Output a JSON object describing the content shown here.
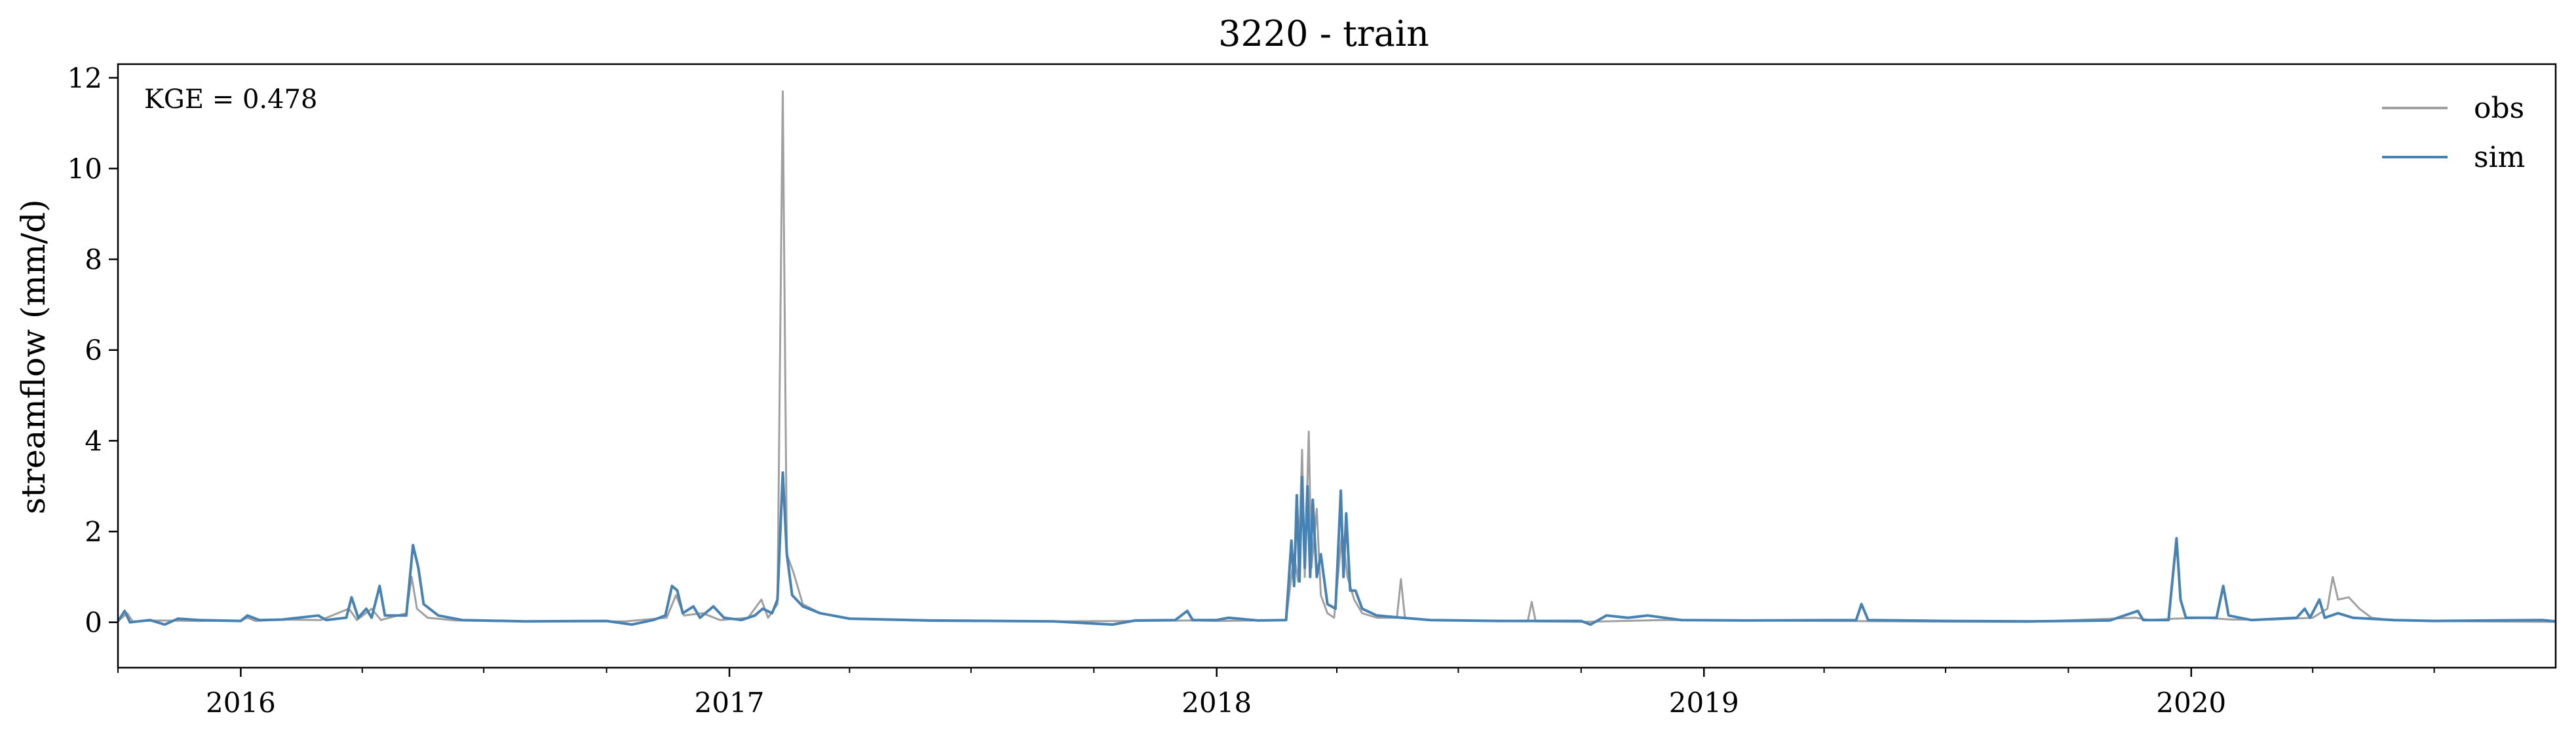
{
  "chart_data": {
    "type": "line",
    "title": "3220 - train",
    "xlabel": "",
    "ylabel": "streamflow (mm/d)",
    "annotation": "KGE = 0.478",
    "xlim": [
      "2015-10-01",
      "2020-09-30"
    ],
    "ylim": [
      -1,
      12.3
    ],
    "yticks": [
      0,
      2,
      4,
      6,
      8,
      10,
      12
    ],
    "xticks": [
      "2016",
      "2017",
      "2018",
      "2019",
      "2020"
    ],
    "grid": false,
    "legend": {
      "placement": "top-right",
      "entries": [
        "obs",
        "sim"
      ]
    },
    "series": [
      {
        "name": "obs",
        "color": "#a0a0a0",
        "points": [
          [
            "2015-10-01",
            0.03
          ],
          [
            "2015-10-08",
            0.2
          ],
          [
            "2015-10-12",
            0.02
          ],
          [
            "2015-11-01",
            0.04
          ],
          [
            "2015-12-01",
            0.03
          ],
          [
            "2016-01-01",
            0.04
          ],
          [
            "2016-01-06",
            0.1
          ],
          [
            "2016-01-12",
            0.03
          ],
          [
            "2016-02-01",
            0.06
          ],
          [
            "2016-03-01",
            0.05
          ],
          [
            "2016-03-22",
            0.3
          ],
          [
            "2016-03-28",
            0.05
          ],
          [
            "2016-04-08",
            0.3
          ],
          [
            "2016-04-15",
            0.05
          ],
          [
            "2016-05-04",
            0.2
          ],
          [
            "2016-05-08",
            1.0
          ],
          [
            "2016-05-12",
            0.3
          ],
          [
            "2016-05-20",
            0.1
          ],
          [
            "2016-06-10",
            0.04
          ],
          [
            "2016-08-01",
            0.02
          ],
          [
            "2016-10-15",
            0.02
          ],
          [
            "2016-11-15",
            0.1
          ],
          [
            "2016-11-22",
            0.6
          ],
          [
            "2016-11-28",
            0.15
          ],
          [
            "2016-12-12",
            0.2
          ],
          [
            "2016-12-25",
            0.05
          ],
          [
            "2017-01-15",
            0.1
          ],
          [
            "2017-01-25",
            0.5
          ],
          [
            "2017-01-30",
            0.1
          ],
          [
            "2017-02-06",
            0.4
          ],
          [
            "2017-02-10",
            11.7
          ],
          [
            "2017-02-13",
            1.5
          ],
          [
            "2017-02-18",
            1.1
          ],
          [
            "2017-02-25",
            0.4
          ],
          [
            "2017-03-10",
            0.2
          ],
          [
            "2017-04-01",
            0.08
          ],
          [
            "2017-06-01",
            0.03
          ],
          [
            "2017-09-01",
            0.02
          ],
          [
            "2017-11-01",
            0.03
          ],
          [
            "2017-12-15",
            0.04
          ],
          [
            "2018-01-01",
            0.03
          ],
          [
            "2018-02-01",
            0.04
          ],
          [
            "2018-02-22",
            0.05
          ],
          [
            "2018-02-28",
            1.5
          ],
          [
            "2018-03-03",
            0.9
          ],
          [
            "2018-03-06",
            3.8
          ],
          [
            "2018-03-08",
            1.0
          ],
          [
            "2018-03-11",
            4.2
          ],
          [
            "2018-03-13",
            1.2
          ],
          [
            "2018-03-17",
            2.5
          ],
          [
            "2018-03-20",
            0.6
          ],
          [
            "2018-03-25",
            0.2
          ],
          [
            "2018-03-30",
            0.1
          ],
          [
            "2018-04-05",
            2.0
          ],
          [
            "2018-04-09",
            1.0
          ],
          [
            "2018-04-14",
            0.5
          ],
          [
            "2018-04-20",
            0.2
          ],
          [
            "2018-05-01",
            0.1
          ],
          [
            "2018-05-16",
            0.1
          ],
          [
            "2018-05-19",
            0.95
          ],
          [
            "2018-05-22",
            0.1
          ],
          [
            "2018-06-10",
            0.05
          ],
          [
            "2018-08-22",
            0.02
          ],
          [
            "2018-08-25",
            0.45
          ],
          [
            "2018-08-28",
            0.02
          ],
          [
            "2018-10-01",
            0.01
          ],
          [
            "2018-11-01",
            0.03
          ],
          [
            "2018-12-01",
            0.05
          ],
          [
            "2019-02-01",
            0.04
          ],
          [
            "2019-04-01",
            0.03
          ],
          [
            "2019-06-01",
            0.02
          ],
          [
            "2019-09-01",
            0.01
          ],
          [
            "2019-11-20",
            0.1
          ],
          [
            "2019-12-01",
            0.05
          ],
          [
            "2019-12-20",
            0.08
          ],
          [
            "2020-01-10",
            0.1
          ],
          [
            "2020-02-01",
            0.06
          ],
          [
            "2020-03-01",
            0.06
          ],
          [
            "2020-04-01",
            0.1
          ],
          [
            "2020-04-12",
            0.3
          ],
          [
            "2020-04-16",
            1.0
          ],
          [
            "2020-04-20",
            0.5
          ],
          [
            "2020-04-28",
            0.55
          ],
          [
            "2020-05-06",
            0.3
          ],
          [
            "2020-05-15",
            0.1
          ],
          [
            "2020-06-01",
            0.04
          ],
          [
            "2020-08-01",
            0.02
          ],
          [
            "2020-09-30",
            0.01
          ]
        ]
      },
      {
        "name": "sim",
        "color": "#4682b4",
        "points": [
          [
            "2015-10-01",
            0.02
          ],
          [
            "2015-10-06",
            0.25
          ],
          [
            "2015-10-10",
            0.0
          ],
          [
            "2015-10-25",
            0.05
          ],
          [
            "2015-11-05",
            -0.05
          ],
          [
            "2015-11-15",
            0.08
          ],
          [
            "2015-12-01",
            0.05
          ],
          [
            "2016-01-01",
            0.03
          ],
          [
            "2016-01-06",
            0.15
          ],
          [
            "2016-01-15",
            0.05
          ],
          [
            "2016-02-01",
            0.06
          ],
          [
            "2016-02-28",
            0.15
          ],
          [
            "2016-03-05",
            0.05
          ],
          [
            "2016-03-20",
            0.1
          ],
          [
            "2016-03-24",
            0.55
          ],
          [
            "2016-03-29",
            0.1
          ],
          [
            "2016-04-04",
            0.3
          ],
          [
            "2016-04-08",
            0.1
          ],
          [
            "2016-04-14",
            0.8
          ],
          [
            "2016-04-18",
            0.15
          ],
          [
            "2016-05-04",
            0.15
          ],
          [
            "2016-05-09",
            1.7
          ],
          [
            "2016-05-13",
            1.2
          ],
          [
            "2016-05-17",
            0.4
          ],
          [
            "2016-05-28",
            0.15
          ],
          [
            "2016-06-15",
            0.05
          ],
          [
            "2016-08-01",
            0.02
          ],
          [
            "2016-10-01",
            0.03
          ],
          [
            "2016-10-20",
            -0.05
          ],
          [
            "2016-11-05",
            0.05
          ],
          [
            "2016-11-14",
            0.15
          ],
          [
            "2016-11-19",
            0.8
          ],
          [
            "2016-11-23",
            0.7
          ],
          [
            "2016-11-27",
            0.2
          ],
          [
            "2016-12-05",
            0.35
          ],
          [
            "2016-12-10",
            0.1
          ],
          [
            "2016-12-20",
            0.35
          ],
          [
            "2016-12-28",
            0.1
          ],
          [
            "2017-01-10",
            0.05
          ],
          [
            "2017-01-20",
            0.15
          ],
          [
            "2017-01-26",
            0.3
          ],
          [
            "2017-02-02",
            0.2
          ],
          [
            "2017-02-06",
            0.5
          ],
          [
            "2017-02-10",
            3.3
          ],
          [
            "2017-02-13",
            1.5
          ],
          [
            "2017-02-17",
            0.6
          ],
          [
            "2017-02-25",
            0.35
          ],
          [
            "2017-03-10",
            0.2
          ],
          [
            "2017-04-01",
            0.08
          ],
          [
            "2017-06-01",
            0.04
          ],
          [
            "2017-09-01",
            0.02
          ],
          [
            "2017-10-15",
            -0.05
          ],
          [
            "2017-11-01",
            0.04
          ],
          [
            "2017-12-01",
            0.05
          ],
          [
            "2017-12-10",
            0.25
          ],
          [
            "2017-12-14",
            0.05
          ],
          [
            "2018-01-01",
            0.05
          ],
          [
            "2018-01-10",
            0.1
          ],
          [
            "2018-02-01",
            0.04
          ],
          [
            "2018-02-22",
            0.05
          ],
          [
            "2018-02-26",
            1.8
          ],
          [
            "2018-02-28",
            0.8
          ],
          [
            "2018-03-02",
            2.8
          ],
          [
            "2018-03-04",
            0.9
          ],
          [
            "2018-03-06",
            3.2
          ],
          [
            "2018-03-08",
            1.2
          ],
          [
            "2018-03-10",
            3.0
          ],
          [
            "2018-03-12",
            1.0
          ],
          [
            "2018-03-14",
            2.7
          ],
          [
            "2018-03-17",
            1.0
          ],
          [
            "2018-03-20",
            1.5
          ],
          [
            "2018-03-25",
            0.4
          ],
          [
            "2018-03-31",
            0.3
          ],
          [
            "2018-04-04",
            2.9
          ],
          [
            "2018-04-06",
            1.0
          ],
          [
            "2018-04-08",
            2.4
          ],
          [
            "2018-04-11",
            0.7
          ],
          [
            "2018-04-15",
            0.7
          ],
          [
            "2018-04-20",
            0.3
          ],
          [
            "2018-05-01",
            0.15
          ],
          [
            "2018-05-20",
            0.1
          ],
          [
            "2018-06-10",
            0.05
          ],
          [
            "2018-08-01",
            0.03
          ],
          [
            "2018-10-01",
            0.03
          ],
          [
            "2018-10-08",
            -0.05
          ],
          [
            "2018-10-20",
            0.15
          ],
          [
            "2018-11-05",
            0.1
          ],
          [
            "2018-11-20",
            0.15
          ],
          [
            "2018-12-15",
            0.05
          ],
          [
            "2019-02-01",
            0.04
          ],
          [
            "2019-04-25",
            0.05
          ],
          [
            "2019-04-29",
            0.4
          ],
          [
            "2019-05-04",
            0.05
          ],
          [
            "2019-07-01",
            0.03
          ],
          [
            "2019-09-01",
            0.02
          ],
          [
            "2019-11-01",
            0.04
          ],
          [
            "2019-11-22",
            0.25
          ],
          [
            "2019-11-26",
            0.05
          ],
          [
            "2019-12-15",
            0.05
          ],
          [
            "2019-12-21",
            1.85
          ],
          [
            "2019-12-24",
            0.5
          ],
          [
            "2019-12-28",
            0.1
          ],
          [
            "2020-01-20",
            0.1
          ],
          [
            "2020-01-25",
            0.8
          ],
          [
            "2020-01-29",
            0.15
          ],
          [
            "2020-02-15",
            0.05
          ],
          [
            "2020-03-20",
            0.1
          ],
          [
            "2020-03-26",
            0.3
          ],
          [
            "2020-03-30",
            0.1
          ],
          [
            "2020-04-06",
            0.5
          ],
          [
            "2020-04-10",
            0.1
          ],
          [
            "2020-04-20",
            0.2
          ],
          [
            "2020-05-01",
            0.1
          ],
          [
            "2020-06-01",
            0.05
          ],
          [
            "2020-07-01",
            0.03
          ],
          [
            "2020-09-20",
            0.05
          ],
          [
            "2020-09-30",
            0.02
          ]
        ]
      }
    ]
  }
}
